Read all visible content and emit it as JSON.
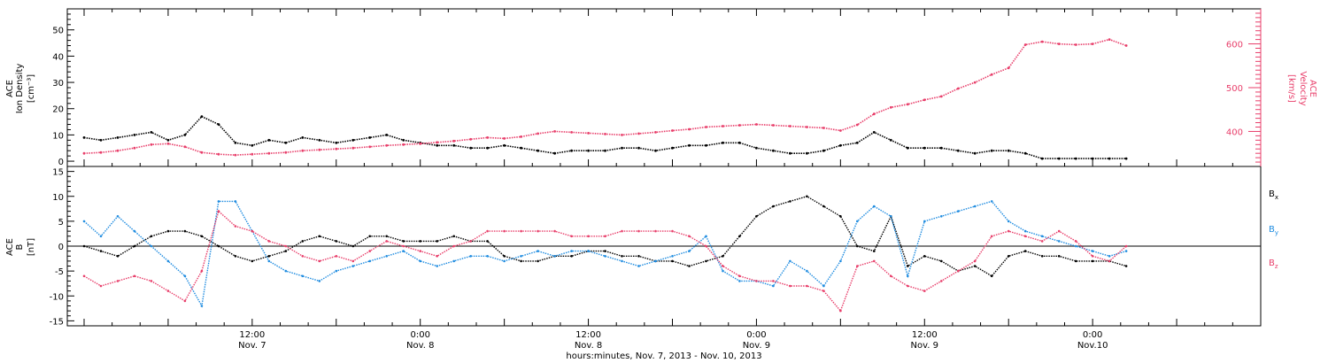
{
  "colors": {
    "density": "#000000",
    "velocity": "#e83e6a",
    "bx": "#000000",
    "by": "#1f8ce0",
    "bz": "#e83e6a",
    "axis": "#000000"
  },
  "x_axis": {
    "title": "hours:minutes, Nov.  7, 2013 - Nov. 10, 2013",
    "ticks": [
      {
        "t": 0.5,
        "time": "12:00",
        "date": "Nov. 7"
      },
      {
        "t": 1.0,
        "time": "0:00",
        "date": "Nov. 8"
      },
      {
        "t": 1.5,
        "time": "12:00",
        "date": "Nov. 8"
      },
      {
        "t": 2.0,
        "time": "0:00",
        "date": "Nov. 9"
      },
      {
        "t": 2.5,
        "time": "12:00",
        "date": "Nov. 9"
      },
      {
        "t": 3.0,
        "time": "0:00",
        "date": "Nov.10"
      }
    ]
  },
  "chart_data": [
    {
      "type": "scatter",
      "panel": "plasma",
      "y_left_label": [
        "ACE",
        "Ion Density",
        "[cm⁻³]"
      ],
      "y_left_range": [
        -2,
        58
      ],
      "y_left_ticks": [
        0,
        10,
        20,
        30,
        40,
        50
      ],
      "y_right_label": [
        "ACE",
        "Velocity",
        "[km/s]"
      ],
      "y_right_range": [
        320,
        680
      ],
      "y_right_ticks": [
        400,
        500,
        600
      ],
      "x_range_days": [
        -0.05,
        3.5
      ],
      "series": [
        {
          "key": "density",
          "axis": "left",
          "x": [
            0.0,
            0.05,
            0.1,
            0.15,
            0.2,
            0.25,
            0.3,
            0.35,
            0.4,
            0.45,
            0.5,
            0.55,
            0.6,
            0.65,
            0.7,
            0.75,
            0.8,
            0.85,
            0.9,
            0.95,
            1.0,
            1.05,
            1.1,
            1.15,
            1.2,
            1.25,
            1.3,
            1.35,
            1.4,
            1.45,
            1.5,
            1.55,
            1.6,
            1.65,
            1.7,
            1.75,
            1.8,
            1.85,
            1.9,
            1.95,
            2.0,
            2.05,
            2.1,
            2.15,
            2.2,
            2.25,
            2.3,
            2.35,
            2.4,
            2.45,
            2.5,
            2.55,
            2.6,
            2.65,
            2.7,
            2.75,
            2.8,
            2.85,
            2.9,
            2.95,
            3.0,
            3.05,
            3.1
          ],
          "values": [
            9,
            8,
            9,
            10,
            11,
            8,
            10,
            17,
            14,
            7,
            6,
            8,
            7,
            9,
            8,
            7,
            8,
            9,
            10,
            8,
            7,
            6,
            6,
            5,
            5,
            6,
            5,
            4,
            3,
            4,
            4,
            4,
            5,
            5,
            4,
            5,
            6,
            6,
            7,
            7,
            5,
            4,
            3,
            3,
            4,
            6,
            7,
            11,
            8,
            5,
            5,
            5,
            4,
            3,
            4,
            4,
            3,
            1,
            1,
            1,
            1,
            1,
            1
          ]
        },
        {
          "key": "velocity",
          "axis": "right",
          "x": [
            0.0,
            0.05,
            0.1,
            0.15,
            0.2,
            0.25,
            0.3,
            0.35,
            0.4,
            0.45,
            0.5,
            0.55,
            0.6,
            0.65,
            0.7,
            0.75,
            0.8,
            0.85,
            0.9,
            0.95,
            1.0,
            1.05,
            1.1,
            1.15,
            1.2,
            1.25,
            1.3,
            1.35,
            1.4,
            1.45,
            1.5,
            1.55,
            1.6,
            1.65,
            1.7,
            1.75,
            1.8,
            1.85,
            1.9,
            1.95,
            2.0,
            2.05,
            2.1,
            2.15,
            2.2,
            2.25,
            2.3,
            2.35,
            2.4,
            2.45,
            2.5,
            2.55,
            2.6,
            2.65,
            2.7,
            2.75,
            2.8,
            2.85,
            2.9,
            2.95,
            3.0,
            3.05,
            3.1
          ],
          "values": [
            350,
            352,
            356,
            362,
            370,
            372,
            365,
            352,
            348,
            346,
            348,
            350,
            352,
            356,
            358,
            360,
            362,
            365,
            368,
            370,
            372,
            375,
            378,
            382,
            386,
            384,
            388,
            395,
            400,
            398,
            396,
            394,
            392,
            395,
            398,
            402,
            405,
            410,
            412,
            414,
            416,
            414,
            412,
            410,
            408,
            402,
            415,
            440,
            455,
            462,
            472,
            480,
            498,
            512,
            530,
            545,
            598,
            605,
            600,
            598,
            600,
            610,
            596
          ]
        }
      ]
    },
    {
      "type": "scatter",
      "panel": "magnetic",
      "y_label": [
        "ACE",
        "B",
        "[nT]"
      ],
      "y_range": [
        -16,
        16
      ],
      "y_ticks": [
        -15,
        -10,
        -5,
        0,
        5,
        10,
        15
      ],
      "x_range_days": [
        -0.05,
        3.5
      ],
      "series": [
        {
          "key": "bx",
          "name": "B",
          "sub": "x",
          "x": [
            0.0,
            0.05,
            0.1,
            0.15,
            0.2,
            0.25,
            0.3,
            0.35,
            0.4,
            0.45,
            0.5,
            0.55,
            0.6,
            0.65,
            0.7,
            0.75,
            0.8,
            0.85,
            0.9,
            0.95,
            1.0,
            1.05,
            1.1,
            1.15,
            1.2,
            1.25,
            1.3,
            1.35,
            1.4,
            1.45,
            1.5,
            1.55,
            1.6,
            1.65,
            1.7,
            1.75,
            1.8,
            1.85,
            1.9,
            1.95,
            2.0,
            2.05,
            2.1,
            2.15,
            2.2,
            2.25,
            2.3,
            2.35,
            2.4,
            2.45,
            2.5,
            2.55,
            2.6,
            2.65,
            2.7,
            2.75,
            2.8,
            2.85,
            2.9,
            2.95,
            3.0,
            3.05,
            3.1
          ],
          "values": [
            0,
            -1,
            -2,
            0,
            2,
            3,
            3,
            2,
            0,
            -2,
            -3,
            -2,
            -1,
            1,
            2,
            1,
            0,
            2,
            2,
            1,
            1,
            1,
            2,
            1,
            1,
            -2,
            -3,
            -3,
            -2,
            -2,
            -1,
            -1,
            -2,
            -2,
            -3,
            -3,
            -4,
            -3,
            -2,
            2,
            6,
            8,
            9,
            10,
            8,
            6,
            0,
            -1,
            6,
            -4,
            -2,
            -3,
            -5,
            -4,
            -6,
            -2,
            -1,
            -2,
            -2,
            -3,
            -3,
            -3,
            -4
          ]
        },
        {
          "key": "by",
          "name": "B",
          "sub": "y",
          "x": [
            0.0,
            0.05,
            0.1,
            0.15,
            0.2,
            0.25,
            0.3,
            0.35,
            0.4,
            0.45,
            0.5,
            0.55,
            0.6,
            0.65,
            0.7,
            0.75,
            0.8,
            0.85,
            0.9,
            0.95,
            1.0,
            1.05,
            1.1,
            1.15,
            1.2,
            1.25,
            1.3,
            1.35,
            1.4,
            1.45,
            1.5,
            1.55,
            1.6,
            1.65,
            1.7,
            1.75,
            1.8,
            1.85,
            1.9,
            1.95,
            2.0,
            2.05,
            2.1,
            2.15,
            2.2,
            2.25,
            2.3,
            2.35,
            2.4,
            2.45,
            2.5,
            2.55,
            2.6,
            2.65,
            2.7,
            2.75,
            2.8,
            2.85,
            2.9,
            2.95,
            3.0,
            3.05,
            3.1
          ],
          "values": [
            5,
            2,
            6,
            3,
            0,
            -3,
            -6,
            -12,
            9,
            9,
            3,
            -3,
            -5,
            -6,
            -7,
            -5,
            -4,
            -3,
            -2,
            -1,
            -3,
            -4,
            -3,
            -2,
            -2,
            -3,
            -2,
            -1,
            -2,
            -1,
            -1,
            -2,
            -3,
            -4,
            -3,
            -2,
            -1,
            2,
            -5,
            -7,
            -7,
            -8,
            -3,
            -5,
            -8,
            -3,
            5,
            8,
            6,
            -6,
            5,
            6,
            7,
            8,
            9,
            5,
            3,
            2,
            1,
            0,
            -1,
            -2,
            -1
          ]
        },
        {
          "key": "bz",
          "name": "B",
          "sub": "z",
          "x": [
            0.0,
            0.05,
            0.1,
            0.15,
            0.2,
            0.25,
            0.3,
            0.35,
            0.4,
            0.45,
            0.5,
            0.55,
            0.6,
            0.65,
            0.7,
            0.75,
            0.8,
            0.85,
            0.9,
            0.95,
            1.0,
            1.05,
            1.1,
            1.15,
            1.2,
            1.25,
            1.3,
            1.35,
            1.4,
            1.45,
            1.5,
            1.55,
            1.6,
            1.65,
            1.7,
            1.75,
            1.8,
            1.85,
            1.9,
            1.95,
            2.0,
            2.05,
            2.1,
            2.15,
            2.2,
            2.25,
            2.3,
            2.35,
            2.4,
            2.45,
            2.5,
            2.55,
            2.6,
            2.65,
            2.7,
            2.75,
            2.8,
            2.85,
            2.9,
            2.95,
            3.0,
            3.05,
            3.1
          ],
          "values": [
            -6,
            -8,
            -7,
            -6,
            -7,
            -9,
            -11,
            -5,
            7,
            4,
            3,
            1,
            0,
            -2,
            -3,
            -2,
            -3,
            -1,
            1,
            0,
            -1,
            -2,
            0,
            1,
            3,
            3,
            3,
            3,
            3,
            2,
            2,
            2,
            3,
            3,
            3,
            3,
            2,
            0,
            -4,
            -6,
            -7,
            -7,
            -8,
            -8,
            -9,
            -13,
            -4,
            -3,
            -6,
            -8,
            -9,
            -7,
            -5,
            -3,
            2,
            3,
            2,
            1,
            3,
            1,
            -2,
            -3,
            0
          ]
        }
      ]
    }
  ]
}
